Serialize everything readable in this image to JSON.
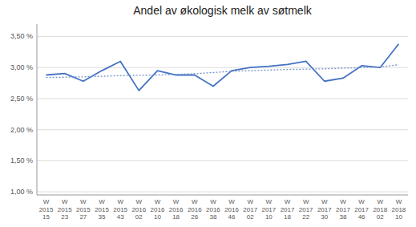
{
  "chart_data": {
    "type": "line",
    "title": "Andel av økologisk melk av søtmelk",
    "categories": [
      "W\n2015\n15",
      "W\n2015\n23",
      "W\n2015\n27",
      "W\n2015\n35",
      "W\n2015\n43",
      "W\n2016\n02",
      "W\n2016\n10",
      "W\n2016\n18",
      "W\n2016\n26",
      "W\n2016\n38",
      "W\n2016\n46",
      "W\n2017\n02",
      "W\n2017\n10",
      "W\n2017\n18",
      "W\n2017\n22",
      "W\n2017\n30",
      "W\n2017\n38",
      "W\n2017\n46",
      "W\n2018\n02",
      "W\n2018\n10"
    ],
    "series": [
      {
        "color": "#4472C4",
        "line_style": "solid",
        "values": [
          0.0288,
          0.02905,
          0.0278,
          0.0295,
          0.031,
          0.0263,
          0.0295,
          0.0288,
          0.0288,
          0.027,
          0.0295,
          0.03,
          0.0302,
          0.0305,
          0.031,
          0.0278,
          0.0283,
          0.0303,
          0.03,
          0.0338
        ]
      },
      {
        "color": "#7393C8",
        "line_style": "dotted",
        "values": [
          0.0284,
          0.02845,
          0.0285,
          0.0286,
          0.0287,
          0.02875,
          0.0288,
          0.0289,
          0.029,
          0.0292,
          0.0294,
          0.0295,
          0.0296,
          0.0297,
          0.02975,
          0.0298,
          0.0299,
          0.03,
          0.0301,
          0.03045
        ]
      }
    ],
    "ylim": [
      0.0095,
      0.037
    ],
    "yticks": [
      {
        "value": 0.01,
        "label": "1,00 %"
      },
      {
        "value": 0.015,
        "label": "1,50 %"
      },
      {
        "value": 0.02,
        "label": "2,00 %"
      },
      {
        "value": 0.025,
        "label": "2,50 %"
      },
      {
        "value": 0.03,
        "label": "3,00 %"
      },
      {
        "value": 0.035,
        "label": "3,50 %"
      }
    ],
    "grid": true
  }
}
